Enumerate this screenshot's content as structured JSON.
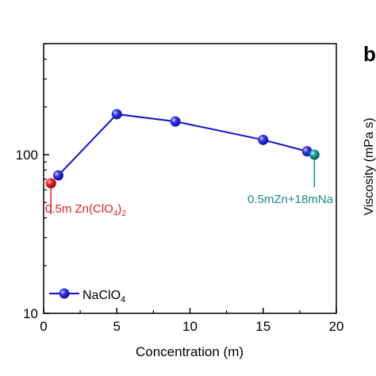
{
  "chart_data": [
    {
      "type": "line",
      "xlabel": "Concentration (m)",
      "xlim": [
        0,
        20
      ],
      "xticks": [
        0,
        5,
        10,
        15,
        20
      ],
      "ylim": [
        10,
        500
      ],
      "yscale": "log",
      "yticks": [
        10,
        100
      ],
      "series": [
        {
          "name": "NaClO₄",
          "color": "#1010d0",
          "x": [
            1,
            5,
            9,
            15,
            18
          ],
          "y": [
            74,
            180,
            162,
            124,
            105
          ]
        }
      ],
      "extra_points": [
        {
          "x": 0.5,
          "y": 66,
          "color": "#e02020",
          "label_pre": "0.5m Zn(ClO",
          "label_sub": "4",
          "label_post": ")",
          "label_sub2": "2"
        },
        {
          "x": 18.5,
          "y": 100,
          "color": "#1a8a8a",
          "label": "0.5mZn+18mNa"
        }
      ],
      "legend": {
        "position": "bottom-left",
        "pre": "NaClO",
        "sub": "4"
      }
    },
    {
      "panel_letter": "b",
      "ylabel": "Viscosity (mPa s)"
    }
  ]
}
